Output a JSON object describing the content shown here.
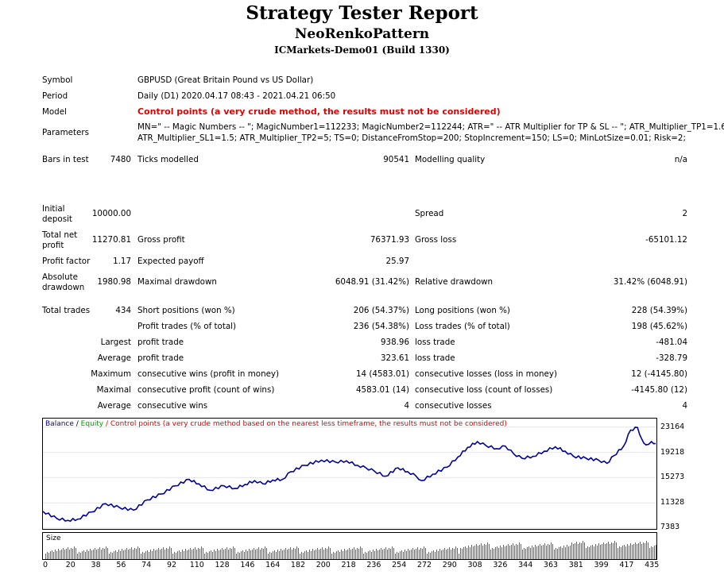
{
  "header": {
    "title": "Strategy Tester Report",
    "expert": "NeoRenkoPattern",
    "server": "ICMarkets-Demo01 (Build 1330)"
  },
  "info": {
    "symbol_label": "Symbol",
    "symbol_value": "GBPUSD (Great Britain Pound vs US Dollar)",
    "period_label": "Period",
    "period_value": "Daily (D1) 2020.04.17 08:43 - 2021.04.21 06:50",
    "model_label": "Model",
    "model_value": "Control points (a very crude method, the results must not be considered)",
    "parameters_label": "Parameters",
    "parameters_line1": "MN=\" -- Magic Numbers -- \"; MagicNumber1=112233; MagicNumber2=112244; ATR=\" -- ATR Multiplier for TP & SL -- \"; ATR_Multiplier_TP1=1.6;",
    "parameters_line2": "ATR_Multiplier_SL1=1.5; ATR_Multiplier_TP2=5; TS=0; DistanceFromStop=200; StopIncrement=150; LS=0; MinLotSize=0.01; Risk=2;",
    "bars_label": "Bars in test",
    "bars_value": "7480",
    "ticks_label": "Ticks modelled",
    "ticks_value": "90541",
    "quality_label": "Modelling quality",
    "quality_value": "n/a"
  },
  "results": {
    "initial_deposit_label_1": "Initial",
    "initial_deposit_label_2": "deposit",
    "initial_deposit": "10000.00",
    "spread_label": "Spread",
    "spread": "2",
    "net_profit_label_1": "Total net",
    "net_profit_label_2": "profit",
    "net_profit": "11270.81",
    "gross_profit_label": "Gross profit",
    "gross_profit": "76371.93",
    "gross_loss_label": "Gross loss",
    "gross_loss": "-65101.12",
    "profit_factor_label": "Profit factor",
    "profit_factor": "1.17",
    "expected_payoff_label": "Expected payoff",
    "expected_payoff": "25.97",
    "abs_dd_label_1": "Absolute",
    "abs_dd_label_2": "drawdown",
    "abs_dd": "1980.98",
    "max_dd_label": "Maximal drawdown",
    "max_dd": "6048.91 (31.42%)",
    "rel_dd_label": "Relative drawdown",
    "rel_dd": "31.42% (6048.91)",
    "total_trades_label": "Total trades",
    "total_trades": "434",
    "short_label": "Short positions (won %)",
    "short": "206 (54.37%)",
    "long_label": "Long positions (won %)",
    "long": "228 (54.39%)",
    "profit_trades_label": "Profit trades (% of total)",
    "profit_trades": "236 (54.38%)",
    "loss_trades_label": "Loss trades (% of total)",
    "loss_trades": "198 (45.62%)",
    "largest_label": "Largest",
    "largest_profit_label": "profit trade",
    "largest_profit": "938.96",
    "largest_loss_label": "loss trade",
    "largest_loss": "-481.04",
    "average_label": "Average",
    "average_profit_label": "profit trade",
    "average_profit": "323.61",
    "average_loss_label": "loss trade",
    "average_loss": "-328.79",
    "maximum_label": "Maximum",
    "max_cons_wins_label": "consecutive wins (profit in money)",
    "max_cons_wins": "14 (4583.01)",
    "max_cons_losses_label": "consecutive losses (loss in money)",
    "max_cons_losses": "12 (-4145.80)",
    "maximal_label": "Maximal",
    "maximal_cons_profit_label": "consecutive profit (count of wins)",
    "maximal_cons_profit": "4583.01 (14)",
    "maximal_cons_loss_label": "consecutive loss (count of losses)",
    "maximal_cons_loss": "-4145.80 (12)",
    "avg_cons_label": "Average",
    "avg_cons_wins_label": "consecutive wins",
    "avg_cons_wins": "4",
    "avg_cons_losses_label": "consecutive losses",
    "avg_cons_losses": "4"
  },
  "chart_data": {
    "type": "line",
    "legend_balance": "Balance",
    "legend_sep": " / ",
    "legend_equity": "Equity",
    "legend_note": " / Control points (a very crude method based on the nearest less timeframe, the results must not be considered)",
    "size_label": "Size",
    "y_ticks": [
      "23164",
      "19218",
      "15273",
      "11328",
      "7383"
    ],
    "ylim": [
      7383,
      24500
    ],
    "x_ticks": [
      "0",
      "20",
      "38",
      "56",
      "74",
      "92",
      "110",
      "128",
      "146",
      "164",
      "182",
      "200",
      "218",
      "236",
      "254",
      "272",
      "290",
      "308",
      "326",
      "344",
      "363",
      "381",
      "399",
      "417",
      "435"
    ],
    "xlim": [
      0,
      440
    ],
    "balance": [
      [
        0,
        10000
      ],
      [
        10,
        8900
      ],
      [
        18,
        8600
      ],
      [
        25,
        8800
      ],
      [
        35,
        9900
      ],
      [
        45,
        11200
      ],
      [
        55,
        10600
      ],
      [
        65,
        10200
      ],
      [
        75,
        11800
      ],
      [
        85,
        12700
      ],
      [
        95,
        14000
      ],
      [
        105,
        15000
      ],
      [
        112,
        14300
      ],
      [
        120,
        13300
      ],
      [
        130,
        14000
      ],
      [
        138,
        13600
      ],
      [
        145,
        14200
      ],
      [
        152,
        14800
      ],
      [
        158,
        14300
      ],
      [
        165,
        14900
      ],
      [
        172,
        15000
      ],
      [
        178,
        16200
      ],
      [
        188,
        17200
      ],
      [
        200,
        18000
      ],
      [
        210,
        17700
      ],
      [
        218,
        17900
      ],
      [
        226,
        17200
      ],
      [
        232,
        16800
      ],
      [
        238,
        16300
      ],
      [
        246,
        15500
      ],
      [
        255,
        16800
      ],
      [
        262,
        16200
      ],
      [
        268,
        15500
      ],
      [
        272,
        14800
      ],
      [
        280,
        15800
      ],
      [
        290,
        16900
      ],
      [
        298,
        18500
      ],
      [
        305,
        20000
      ],
      [
        312,
        20900
      ],
      [
        318,
        20300
      ],
      [
        326,
        19800
      ],
      [
        332,
        20200
      ],
      [
        338,
        19000
      ],
      [
        344,
        18300
      ],
      [
        352,
        18600
      ],
      [
        360,
        19400
      ],
      [
        368,
        20100
      ],
      [
        375,
        19400
      ],
      [
        381,
        18600
      ],
      [
        390,
        18300
      ],
      [
        399,
        18000
      ],
      [
        405,
        17500
      ],
      [
        410,
        18700
      ],
      [
        417,
        20200
      ],
      [
        422,
        22700
      ],
      [
        427,
        23100
      ],
      [
        430,
        21300
      ],
      [
        433,
        20400
      ],
      [
        437,
        20900
      ],
      [
        440,
        20600
      ]
    ],
    "size_pattern": [
      7,
      9,
      8,
      10,
      11,
      9,
      12,
      10,
      13,
      11,
      12,
      14,
      12,
      13,
      15,
      12,
      14,
      13,
      16,
      14
    ]
  }
}
